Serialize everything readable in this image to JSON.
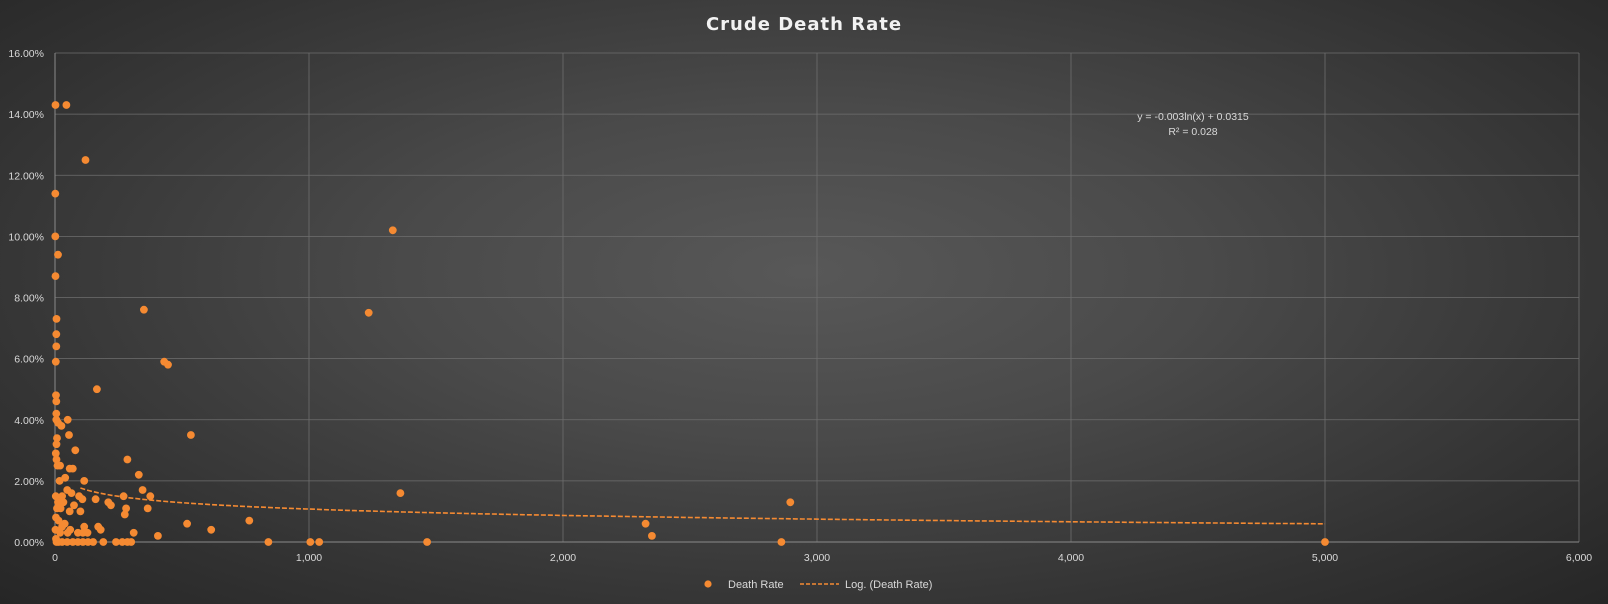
{
  "chart_data": {
    "type": "scatter",
    "title": "Crude Death Rate",
    "xlabel": "",
    "ylabel": "",
    "xlim": [
      0,
      6000
    ],
    "ylim": [
      0,
      0.16
    ],
    "x_ticks": [
      0,
      1000,
      2000,
      3000,
      4000,
      5000,
      6000
    ],
    "x_tick_labels": [
      "0",
      "1,000",
      "2,000",
      "3,000",
      "4,000",
      "5,000",
      "6,000"
    ],
    "y_ticks": [
      0,
      0.02,
      0.04,
      0.06,
      0.08,
      0.1,
      0.12,
      0.14,
      0.16
    ],
    "y_tick_labels": [
      "0.00%",
      "2.00%",
      "4.00%",
      "6.00%",
      "8.00%",
      "10.00%",
      "12.00%",
      "14.00%",
      "16.00%"
    ],
    "grid": true,
    "legend_position": "bottom",
    "colors": {
      "series": "#f58a32"
    },
    "series": [
      {
        "name": "Death Rate",
        "points": [
          [
            2,
            0.143
          ],
          [
            45,
            0.143
          ],
          [
            120,
            0.125
          ],
          [
            1,
            0.114
          ],
          [
            1,
            0.1
          ],
          [
            12,
            0.094
          ],
          [
            2,
            0.087
          ],
          [
            6,
            0.073
          ],
          [
            5,
            0.068
          ],
          [
            5,
            0.064
          ],
          [
            3,
            0.059
          ],
          [
            4,
            0.048
          ],
          [
            5,
            0.046
          ],
          [
            5,
            0.042
          ],
          [
            5,
            0.04
          ],
          [
            12,
            0.039
          ],
          [
            25,
            0.038
          ],
          [
            50,
            0.04
          ],
          [
            8,
            0.034
          ],
          [
            6,
            0.032
          ],
          [
            3,
            0.029
          ],
          [
            6,
            0.027
          ],
          [
            10,
            0.025
          ],
          [
            20,
            0.025
          ],
          [
            55,
            0.035
          ],
          [
            80,
            0.03
          ],
          [
            70,
            0.024
          ],
          [
            58,
            0.024
          ],
          [
            40,
            0.021
          ],
          [
            18,
            0.02
          ],
          [
            115,
            0.02
          ],
          [
            48,
            0.017
          ],
          [
            28,
            0.015
          ],
          [
            65,
            0.016
          ],
          [
            95,
            0.015
          ],
          [
            108,
            0.014
          ],
          [
            3,
            0.015
          ],
          [
            12,
            0.013
          ],
          [
            33,
            0.013
          ],
          [
            8,
            0.011
          ],
          [
            22,
            0.011
          ],
          [
            58,
            0.01
          ],
          [
            75,
            0.012
          ],
          [
            100,
            0.01
          ],
          [
            4,
            0.008
          ],
          [
            14,
            0.007
          ],
          [
            38,
            0.006
          ],
          [
            28,
            0.005
          ],
          [
            60,
            0.004
          ],
          [
            115,
            0.005
          ],
          [
            2,
            0.004
          ],
          [
            20,
            0.003
          ],
          [
            50,
            0.003
          ],
          [
            90,
            0.003
          ],
          [
            110,
            0.003
          ],
          [
            128,
            0.003
          ],
          [
            170,
            0.005
          ],
          [
            180,
            0.004
          ],
          [
            4,
            0.001
          ],
          [
            28,
            0.0
          ],
          [
            48,
            0.0
          ],
          [
            70,
            0.0
          ],
          [
            90,
            0.0
          ],
          [
            110,
            0.0
          ],
          [
            130,
            0.0
          ],
          [
            150,
            0.0
          ],
          [
            190,
            0.0
          ],
          [
            240,
            0.0
          ],
          [
            265,
            0.0
          ],
          [
            285,
            0.0
          ],
          [
            300,
            0.0
          ],
          [
            14,
            0.0
          ],
          [
            6,
            0.0
          ],
          [
            165,
            0.05
          ],
          [
            160,
            0.014
          ],
          [
            210,
            0.013
          ],
          [
            220,
            0.012
          ],
          [
            270,
            0.015
          ],
          [
            280,
            0.011
          ],
          [
            275,
            0.009
          ],
          [
            285,
            0.027
          ],
          [
            330,
            0.022
          ],
          [
            345,
            0.017
          ],
          [
            365,
            0.011
          ],
          [
            375,
            0.015
          ],
          [
            350,
            0.076
          ],
          [
            430,
            0.059
          ],
          [
            445,
            0.058
          ],
          [
            535,
            0.035
          ],
          [
            405,
            0.002
          ],
          [
            310,
            0.003
          ],
          [
            520,
            0.006
          ],
          [
            615,
            0.004
          ],
          [
            765,
            0.007
          ],
          [
            840,
            0.0
          ],
          [
            1005,
            0.0
          ],
          [
            1040,
            0.0
          ],
          [
            1235,
            0.075
          ],
          [
            1330,
            0.102
          ],
          [
            1360,
            0.016
          ],
          [
            1465,
            0.0
          ],
          [
            2325,
            0.006
          ],
          [
            2350,
            0.002
          ],
          [
            2860,
            0.0
          ],
          [
            2895,
            0.013
          ],
          [
            5000,
            0.0
          ]
        ]
      },
      {
        "name": "Log. (Death Rate)",
        "type": "trendline",
        "style": "dashed",
        "equation": "y = -0.003ln(x) + 0.0315",
        "r_squared": "R² = 0.028",
        "coefficients": {
          "a": -0.003,
          "b": 0.0315
        },
        "x_range": [
          100,
          5000
        ]
      }
    ]
  }
}
